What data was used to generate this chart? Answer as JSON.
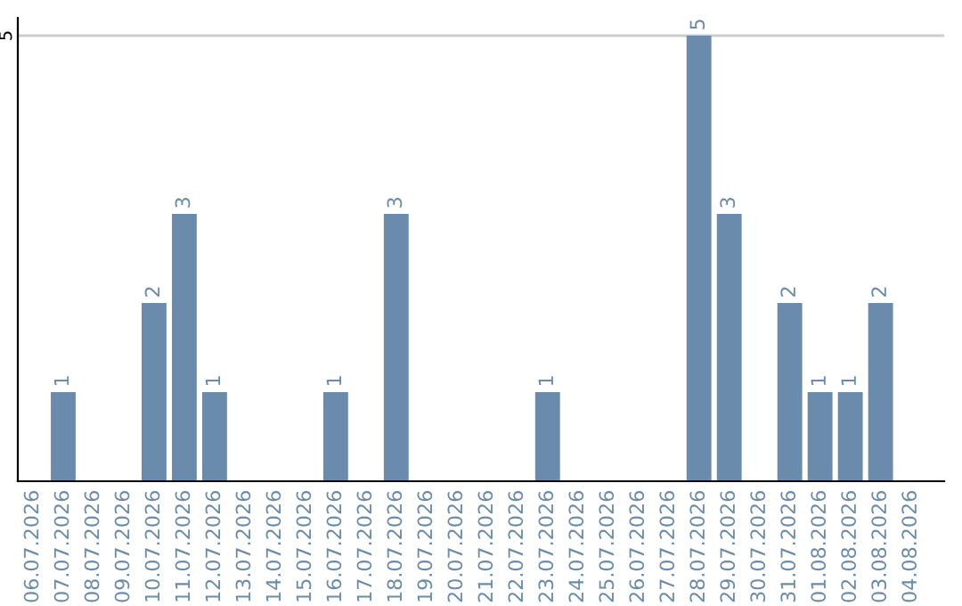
{
  "chart_data": {
    "type": "bar",
    "categories": [
      "06.07.2026",
      "07.07.2026",
      "08.07.2026",
      "09.07.2026",
      "10.07.2026",
      "11.07.2026",
      "12.07.2026",
      "13.07.2026",
      "14.07.2026",
      "15.07.2026",
      "16.07.2026",
      "17.07.2026",
      "18.07.2026",
      "19.07.2026",
      "20.07.2026",
      "21.07.2026",
      "22.07.2026",
      "23.07.2026",
      "24.07.2026",
      "25.07.2026",
      "26.07.2026",
      "27.07.2026",
      "28.07.2026",
      "29.07.2026",
      "30.07.2026",
      "31.07.2026",
      "01.08.2026",
      "02.08.2026",
      "03.08.2026",
      "04.08.2026"
    ],
    "values": [
      0,
      1,
      0,
      0,
      2,
      3,
      1,
      0,
      0,
      0,
      1,
      0,
      3,
      0,
      0,
      0,
      0,
      1,
      0,
      0,
      0,
      0,
      5,
      3,
      0,
      2,
      1,
      1,
      2,
      0
    ],
    "value_labels": [
      null,
      "1",
      null,
      null,
      "2",
      "3",
      "1",
      null,
      null,
      null,
      "1",
      null,
      "3",
      null,
      null,
      null,
      null,
      "1",
      null,
      null,
      null,
      null,
      "5",
      "3",
      null,
      "2",
      "1",
      "1",
      "2",
      null
    ],
    "color": "#6a8bab",
    "ylim": [
      0,
      5.2
    ],
    "yticks": [
      5
    ],
    "grid": "y",
    "legend": false
  }
}
